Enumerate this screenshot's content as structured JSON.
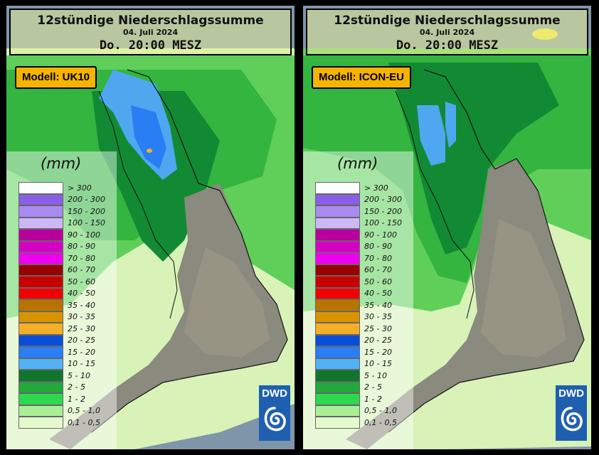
{
  "panels": [
    {
      "title": "12stündige Niederschlagssumme",
      "date": "04. Juli 2024",
      "time": "Do. 20:00 MESZ",
      "model": "Modell: UK10"
    },
    {
      "title": "12stündige Niederschlagssumme",
      "date": "04. Juli 2024",
      "time": "Do. 20:00 MESZ",
      "model": "Modell: ICON-EU"
    }
  ],
  "legend": {
    "unit": "(mm)",
    "items": [
      {
        "label": "> 300",
        "color": "#ffffff"
      },
      {
        "label": "200 - 300",
        "color": "#8b5ee8"
      },
      {
        "label": "150 - 200",
        "color": "#a98af0"
      },
      {
        "label": "100 - 150",
        "color": "#cdb8f6"
      },
      {
        "label": "90 - 100",
        "color": "#b8009e"
      },
      {
        "label": "80 - 90",
        "color": "#d600c4"
      },
      {
        "label": "70 - 80",
        "color": "#f000f0"
      },
      {
        "label": "60 - 70",
        "color": "#9a0000"
      },
      {
        "label": "50 - 60",
        "color": "#c80000"
      },
      {
        "label": "40 - 50",
        "color": "#f00000"
      },
      {
        "label": "35 - 40",
        "color": "#b87400"
      },
      {
        "label": "30 - 35",
        "color": "#d89400"
      },
      {
        "label": "25 - 30",
        "color": "#f5ae28"
      },
      {
        "label": "20 - 25",
        "color": "#0a4dd8"
      },
      {
        "label": "15 - 20",
        "color": "#2a7ef4"
      },
      {
        "label": "10 - 15",
        "color": "#52b2f6"
      },
      {
        "label": "5 - 10",
        "color": "#11752e"
      },
      {
        "label": "2 - 5",
        "color": "#22a83c"
      },
      {
        "label": "1 - 2",
        "color": "#2ed84e"
      },
      {
        "label": "0,5 - 1,0",
        "color": "#a9ef98"
      },
      {
        "label": "0,1 - 0,5",
        "color": "#e4f9cc"
      }
    ]
  },
  "logo": {
    "text": "DWD"
  }
}
